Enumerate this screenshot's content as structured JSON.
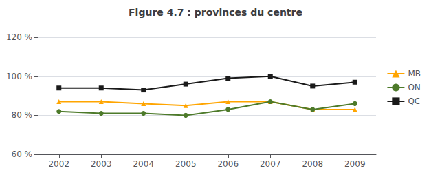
{
  "chart_data": {
    "type": "line",
    "title": "Figure 4.7 : provinces du centre",
    "x": [
      2002,
      2003,
      2004,
      2005,
      2006,
      2007,
      2008,
      2009
    ],
    "xlim": [
      2001.5,
      2009.5
    ],
    "xticks": [
      2002,
      2003,
      2004,
      2005,
      2006,
      2007,
      2008,
      2009
    ],
    "ylim": [
      60,
      125
    ],
    "yticks": [
      {
        "value": 60,
        "label": "60 %"
      },
      {
        "value": 80,
        "label": "80 %"
      },
      {
        "value": 100,
        "label": "100 %"
      },
      {
        "value": 120,
        "label": "120 %"
      }
    ],
    "grid": true,
    "legend": "right",
    "series": [
      {
        "name": "MB",
        "color": "#FFA500",
        "marker": "triangle",
        "values": [
          87,
          87,
          86,
          85,
          87,
          87,
          83,
          83
        ]
      },
      {
        "name": "ON",
        "color": "#4d7a2a",
        "marker": "circle",
        "values": [
          82,
          81,
          81,
          80,
          83,
          87,
          83,
          86
        ]
      },
      {
        "name": "QC",
        "color": "#1a1a1a",
        "marker": "square",
        "values": [
          94,
          94,
          93,
          96,
          99,
          100,
          95,
          97
        ]
      }
    ]
  }
}
